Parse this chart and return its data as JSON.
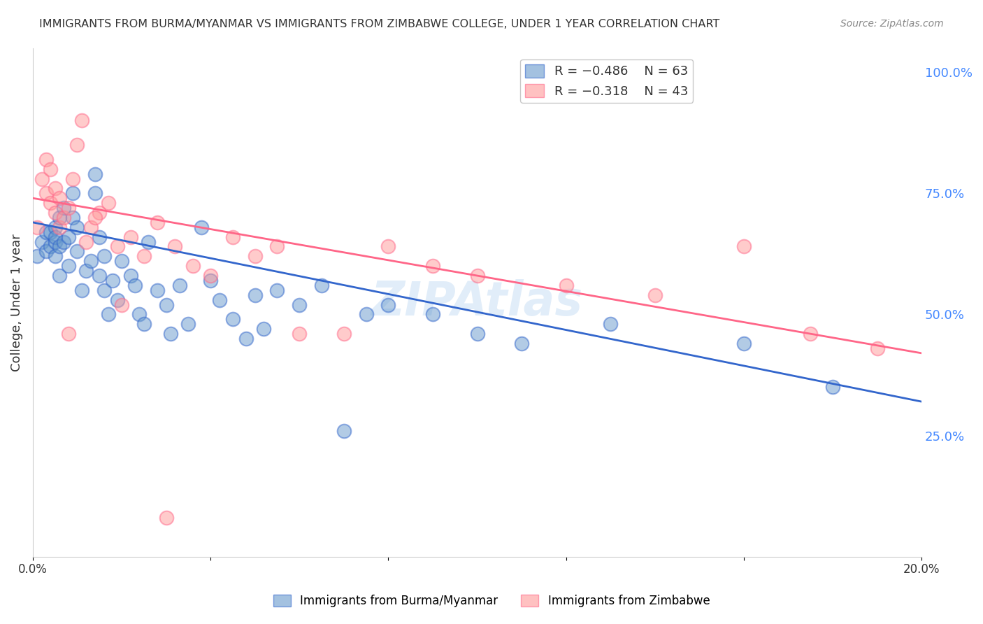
{
  "title": "IMMIGRANTS FROM BURMA/MYANMAR VS IMMIGRANTS FROM ZIMBABWE COLLEGE, UNDER 1 YEAR CORRELATION CHART",
  "source": "Source: ZipAtlas.com",
  "xlabel": "",
  "ylabel": "College, Under 1 year",
  "xlim": [
    0.0,
    0.2
  ],
  "ylim": [
    0.0,
    1.05
  ],
  "xticks": [
    0.0,
    0.04,
    0.08,
    0.12,
    0.16,
    0.2
  ],
  "xticklabels": [
    "0.0%",
    "",
    "",
    "",
    "",
    "20.0%"
  ],
  "yticks_right": [
    0.25,
    0.5,
    0.75,
    1.0
  ],
  "ytick_right_labels": [
    "25.0%",
    "50.0%",
    "75.0%",
    "100.0%"
  ],
  "legend_blue_r": "R = −0.486",
  "legend_blue_n": "N = 63",
  "legend_pink_r": "R = −0.318",
  "legend_pink_n": "N = 43",
  "color_blue": "#6699CC",
  "color_pink": "#FF9999",
  "color_blue_line": "#3366CC",
  "color_pink_line": "#FF6688",
  "color_right_axis": "#4488FF",
  "watermark": "ZIPAtlas",
  "blue_scatter_x": [
    0.001,
    0.002,
    0.003,
    0.003,
    0.004,
    0.004,
    0.005,
    0.005,
    0.005,
    0.005,
    0.006,
    0.006,
    0.006,
    0.007,
    0.007,
    0.008,
    0.008,
    0.009,
    0.009,
    0.01,
    0.01,
    0.011,
    0.012,
    0.013,
    0.014,
    0.014,
    0.015,
    0.015,
    0.016,
    0.016,
    0.017,
    0.018,
    0.019,
    0.02,
    0.022,
    0.023,
    0.024,
    0.025,
    0.026,
    0.028,
    0.03,
    0.031,
    0.033,
    0.035,
    0.038,
    0.04,
    0.042,
    0.045,
    0.048,
    0.05,
    0.052,
    0.055,
    0.06,
    0.065,
    0.07,
    0.075,
    0.08,
    0.09,
    0.1,
    0.11,
    0.13,
    0.16,
    0.18
  ],
  "blue_scatter_y": [
    0.62,
    0.65,
    0.63,
    0.67,
    0.64,
    0.67,
    0.65,
    0.68,
    0.62,
    0.66,
    0.58,
    0.64,
    0.7,
    0.72,
    0.65,
    0.6,
    0.66,
    0.75,
    0.7,
    0.63,
    0.68,
    0.55,
    0.59,
    0.61,
    0.75,
    0.79,
    0.66,
    0.58,
    0.62,
    0.55,
    0.5,
    0.57,
    0.53,
    0.61,
    0.58,
    0.56,
    0.5,
    0.48,
    0.65,
    0.55,
    0.52,
    0.46,
    0.56,
    0.48,
    0.68,
    0.57,
    0.53,
    0.49,
    0.45,
    0.54,
    0.47,
    0.55,
    0.52,
    0.56,
    0.26,
    0.5,
    0.52,
    0.5,
    0.46,
    0.44,
    0.48,
    0.44,
    0.35
  ],
  "pink_scatter_x": [
    0.001,
    0.002,
    0.003,
    0.003,
    0.004,
    0.004,
    0.005,
    0.005,
    0.006,
    0.006,
    0.007,
    0.008,
    0.009,
    0.01,
    0.011,
    0.012,
    0.013,
    0.015,
    0.017,
    0.019,
    0.022,
    0.025,
    0.028,
    0.032,
    0.036,
    0.04,
    0.045,
    0.05,
    0.06,
    0.07,
    0.08,
    0.09,
    0.1,
    0.12,
    0.14,
    0.16,
    0.175,
    0.19,
    0.008,
    0.014,
    0.02,
    0.03,
    0.055
  ],
  "pink_scatter_y": [
    0.68,
    0.78,
    0.75,
    0.82,
    0.73,
    0.8,
    0.71,
    0.76,
    0.68,
    0.74,
    0.7,
    0.72,
    0.78,
    0.85,
    0.9,
    0.65,
    0.68,
    0.71,
    0.73,
    0.64,
    0.66,
    0.62,
    0.69,
    0.64,
    0.6,
    0.58,
    0.66,
    0.62,
    0.46,
    0.46,
    0.64,
    0.6,
    0.58,
    0.56,
    0.54,
    0.64,
    0.46,
    0.43,
    0.46,
    0.7,
    0.52,
    0.08,
    0.64
  ],
  "blue_line_x": [
    0.0,
    0.2
  ],
  "blue_line_y": [
    0.69,
    0.32
  ],
  "pink_line_x": [
    0.0,
    0.2
  ],
  "pink_line_y": [
    0.74,
    0.42
  ],
  "grid_color": "#DDDDDD",
  "background_color": "#FFFFFF"
}
